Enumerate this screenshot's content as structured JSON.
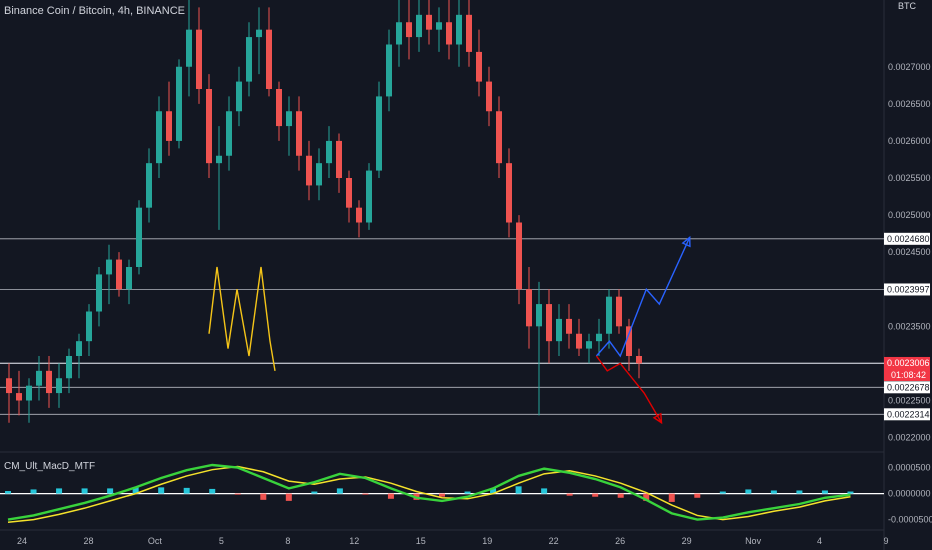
{
  "chart_data": {
    "type": "candlestick",
    "title": "Binance Coin / Bitcoin, 4h, BINANCE",
    "currency": "BTC",
    "price_axis": {
      "range": [
        0.00219,
        0.00279
      ],
      "ticks": [
        "0.0027000",
        "0.0026500",
        "0.0026000",
        "0.0025500",
        "0.0025000",
        "0.0024500",
        "0.0023500",
        "0.0022500",
        "0.0022000"
      ]
    },
    "x_axis": {
      "labels": [
        "24",
        "28",
        "Oct",
        "5",
        "8",
        "12",
        "15",
        "19",
        "22",
        "26",
        "29",
        "Nov",
        "4",
        "9"
      ]
    },
    "horizontal_levels": [
      0.002468,
      0.0023997,
      0.0023006,
      0.0022998,
      0.0022678,
      0.0022314
    ],
    "level_labels": [
      "0.0024680",
      "0.0023997",
      "0.0022998",
      "0.0022678",
      "0.0022314"
    ],
    "current_price": {
      "value": "0.0023006",
      "countdown": "01:08:42",
      "color": "#f23645"
    },
    "candles_ohlc": [
      [
        0.00228,
        0.0023,
        0.00222,
        0.00226
      ],
      [
        0.00226,
        0.00229,
        0.00223,
        0.00225
      ],
      [
        0.00225,
        0.00228,
        0.00222,
        0.00227
      ],
      [
        0.00227,
        0.00231,
        0.00225,
        0.00229
      ],
      [
        0.00229,
        0.00231,
        0.00224,
        0.00226
      ],
      [
        0.00226,
        0.0023,
        0.00224,
        0.00228
      ],
      [
        0.00228,
        0.00232,
        0.00226,
        0.00231
      ],
      [
        0.00231,
        0.00234,
        0.00228,
        0.00233
      ],
      [
        0.00233,
        0.00238,
        0.00231,
        0.00237
      ],
      [
        0.00237,
        0.00243,
        0.00235,
        0.00242
      ],
      [
        0.00242,
        0.00246,
        0.00238,
        0.00244
      ],
      [
        0.00244,
        0.00245,
        0.00239,
        0.0024
      ],
      [
        0.0024,
        0.00244,
        0.00238,
        0.00243
      ],
      [
        0.00243,
        0.00252,
        0.00242,
        0.00251
      ],
      [
        0.00251,
        0.00259,
        0.00249,
        0.00257
      ],
      [
        0.00257,
        0.00266,
        0.00255,
        0.00264
      ],
      [
        0.00264,
        0.00268,
        0.00258,
        0.0026
      ],
      [
        0.0026,
        0.00271,
        0.00259,
        0.0027
      ],
      [
        0.0027,
        0.00279,
        0.00266,
        0.00275
      ],
      [
        0.00275,
        0.00278,
        0.00265,
        0.00267
      ],
      [
        0.00267,
        0.00269,
        0.00255,
        0.00257
      ],
      [
        0.00257,
        0.00262,
        0.00248,
        0.00258
      ],
      [
        0.00258,
        0.00266,
        0.00256,
        0.00264
      ],
      [
        0.00264,
        0.0027,
        0.00262,
        0.00268
      ],
      [
        0.00268,
        0.00276,
        0.00266,
        0.00274
      ],
      [
        0.00274,
        0.00278,
        0.00269,
        0.00275
      ],
      [
        0.00275,
        0.00278,
        0.00266,
        0.00267
      ],
      [
        0.00267,
        0.00268,
        0.0026,
        0.00262
      ],
      [
        0.00262,
        0.00266,
        0.00258,
        0.00264
      ],
      [
        0.00264,
        0.00266,
        0.00256,
        0.00258
      ],
      [
        0.00258,
        0.0026,
        0.00252,
        0.00254
      ],
      [
        0.00254,
        0.00259,
        0.00252,
        0.00257
      ],
      [
        0.00257,
        0.00262,
        0.00255,
        0.0026
      ],
      [
        0.0026,
        0.00261,
        0.00253,
        0.00255
      ],
      [
        0.00255,
        0.00256,
        0.00249,
        0.00251
      ],
      [
        0.00251,
        0.00252,
        0.00247,
        0.00249
      ],
      [
        0.00249,
        0.00257,
        0.00248,
        0.00256
      ],
      [
        0.00256,
        0.00268,
        0.00255,
        0.00266
      ],
      [
        0.00266,
        0.00275,
        0.00264,
        0.00273
      ],
      [
        0.00273,
        0.00279,
        0.0027,
        0.00276
      ],
      [
        0.00276,
        0.00279,
        0.00271,
        0.00274
      ],
      [
        0.00274,
        0.00279,
        0.00272,
        0.00277
      ],
      [
        0.00277,
        0.00279,
        0.00273,
        0.00275
      ],
      [
        0.00275,
        0.00278,
        0.00272,
        0.00276
      ],
      [
        0.00276,
        0.00279,
        0.00271,
        0.00273
      ],
      [
        0.00273,
        0.00279,
        0.0027,
        0.00277
      ],
      [
        0.00277,
        0.00279,
        0.0027,
        0.00272
      ],
      [
        0.00272,
        0.00275,
        0.00266,
        0.00268
      ],
      [
        0.00268,
        0.0027,
        0.00262,
        0.00264
      ],
      [
        0.00264,
        0.00266,
        0.00255,
        0.00257
      ],
      [
        0.00257,
        0.00259,
        0.00247,
        0.00249
      ],
      [
        0.00249,
        0.0025,
        0.00238,
        0.0024
      ],
      [
        0.0024,
        0.00243,
        0.00232,
        0.00235
      ],
      [
        0.00235,
        0.00241,
        0.00223,
        0.00238
      ],
      [
        0.00238,
        0.0024,
        0.0023,
        0.00233
      ],
      [
        0.00233,
        0.00238,
        0.00231,
        0.00236
      ],
      [
        0.00236,
        0.00238,
        0.00232,
        0.00234
      ],
      [
        0.00234,
        0.00236,
        0.00231,
        0.00232
      ],
      [
        0.00232,
        0.00234,
        0.0023,
        0.00233
      ],
      [
        0.00233,
        0.00236,
        0.00231,
        0.00234
      ],
      [
        0.00234,
        0.0024,
        0.00232,
        0.00239
      ],
      [
        0.00239,
        0.0024,
        0.00234,
        0.00235
      ],
      [
        0.00235,
        0.00236,
        0.00229,
        0.00231
      ],
      [
        0.00231,
        0.00232,
        0.00228,
        0.0023
      ]
    ],
    "pattern_w": [
      [
        0.00234,
        20.5
      ],
      [
        0.00243,
        21.3
      ],
      [
        0.00232,
        22.4
      ],
      [
        0.0024,
        23.3
      ],
      [
        0.00231,
        24.5
      ],
      [
        0.00243,
        25.7
      ],
      [
        0.00233,
        26.6
      ],
      [
        0.00229,
        27.1
      ]
    ],
    "pattern_color": "#f5c518",
    "bullish_projection": [
      [
        27.3,
        0.00231
      ],
      [
        27.9,
        0.00233
      ],
      [
        28.4,
        0.00231
      ],
      [
        29.6,
        0.0024
      ],
      [
        30.2,
        0.00238
      ],
      [
        31.6,
        0.00247
      ]
    ],
    "bearish_projection": [
      [
        27.3,
        0.00231
      ],
      [
        27.8,
        0.00229
      ],
      [
        28.4,
        0.0023
      ],
      [
        29.5,
        0.00226
      ],
      [
        30.3,
        0.00222
      ]
    ],
    "up_color": "#26a69a",
    "down_color": "#ef5350",
    "indicator": {
      "name": "CM_Ult_MacD_MTF",
      "ticks": [
        "0.0000500",
        "0.0000000",
        "-0.0000500"
      ],
      "range": [
        -7e-05,
        8e-05
      ],
      "macd": [
        -5e-05,
        -4.2e-05,
        -3e-05,
        -1.8e-05,
        -4e-06,
        1.2e-05,
        3e-05,
        4.5e-05,
        5.5e-05,
        5e-05,
        3e-05,
        1e-05,
        2.2e-05,
        3.8e-05,
        3e-05,
        1e-05,
        -8e-06,
        -1.4e-05,
        -6e-06,
        1e-05,
        3.4e-05,
        4.8e-05,
        4e-05,
        2.8e-05,
        1.2e-05,
        -1.2e-05,
        -3.8e-05,
        -5e-05,
        -4.6e-05,
        -3.6e-05,
        -2.8e-05,
        -2e-05,
        -8e-06,
        -2e-06
      ],
      "signal": [
        -5.5e-05,
        -5e-05,
        -4e-05,
        -2.8e-05,
        -1.4e-05,
        0.0,
        1.8e-05,
        3.4e-05,
        4.6e-05,
        5.2e-05,
        4.2e-05,
        2.4e-05,
        1.8e-05,
        2.8e-05,
        3.2e-05,
        2e-05,
        4e-06,
        -8e-06,
        -1e-05,
        0.0,
        2e-05,
        3.8e-05,
        4.4e-05,
        3.4e-05,
        2e-05,
        2e-06,
        -2.2e-05,
        -4.2e-05,
        -5e-05,
        -4.4e-05,
        -3.4e-05,
        -2.6e-05,
        -1.4e-05,
        -6e-06
      ],
      "histogram": [
        5e-06,
        8e-06,
        1e-05,
        1e-05,
        1e-05,
        1.2e-05,
        1.2e-05,
        1.1e-05,
        9e-06,
        -2e-06,
        -1.2e-05,
        -1.4e-05,
        4e-06,
        1e-05,
        -2e-06,
        -1e-05,
        -1.2e-05,
        -6e-06,
        4e-06,
        1e-05,
        1.4e-05,
        1e-05,
        -4e-06,
        -6e-06,
        -8e-06,
        -1.4e-05,
        -1.6e-05,
        -8e-06,
        4e-06,
        8e-06,
        6e-06,
        6e-06,
        6e-06,
        4e-06
      ]
    }
  }
}
